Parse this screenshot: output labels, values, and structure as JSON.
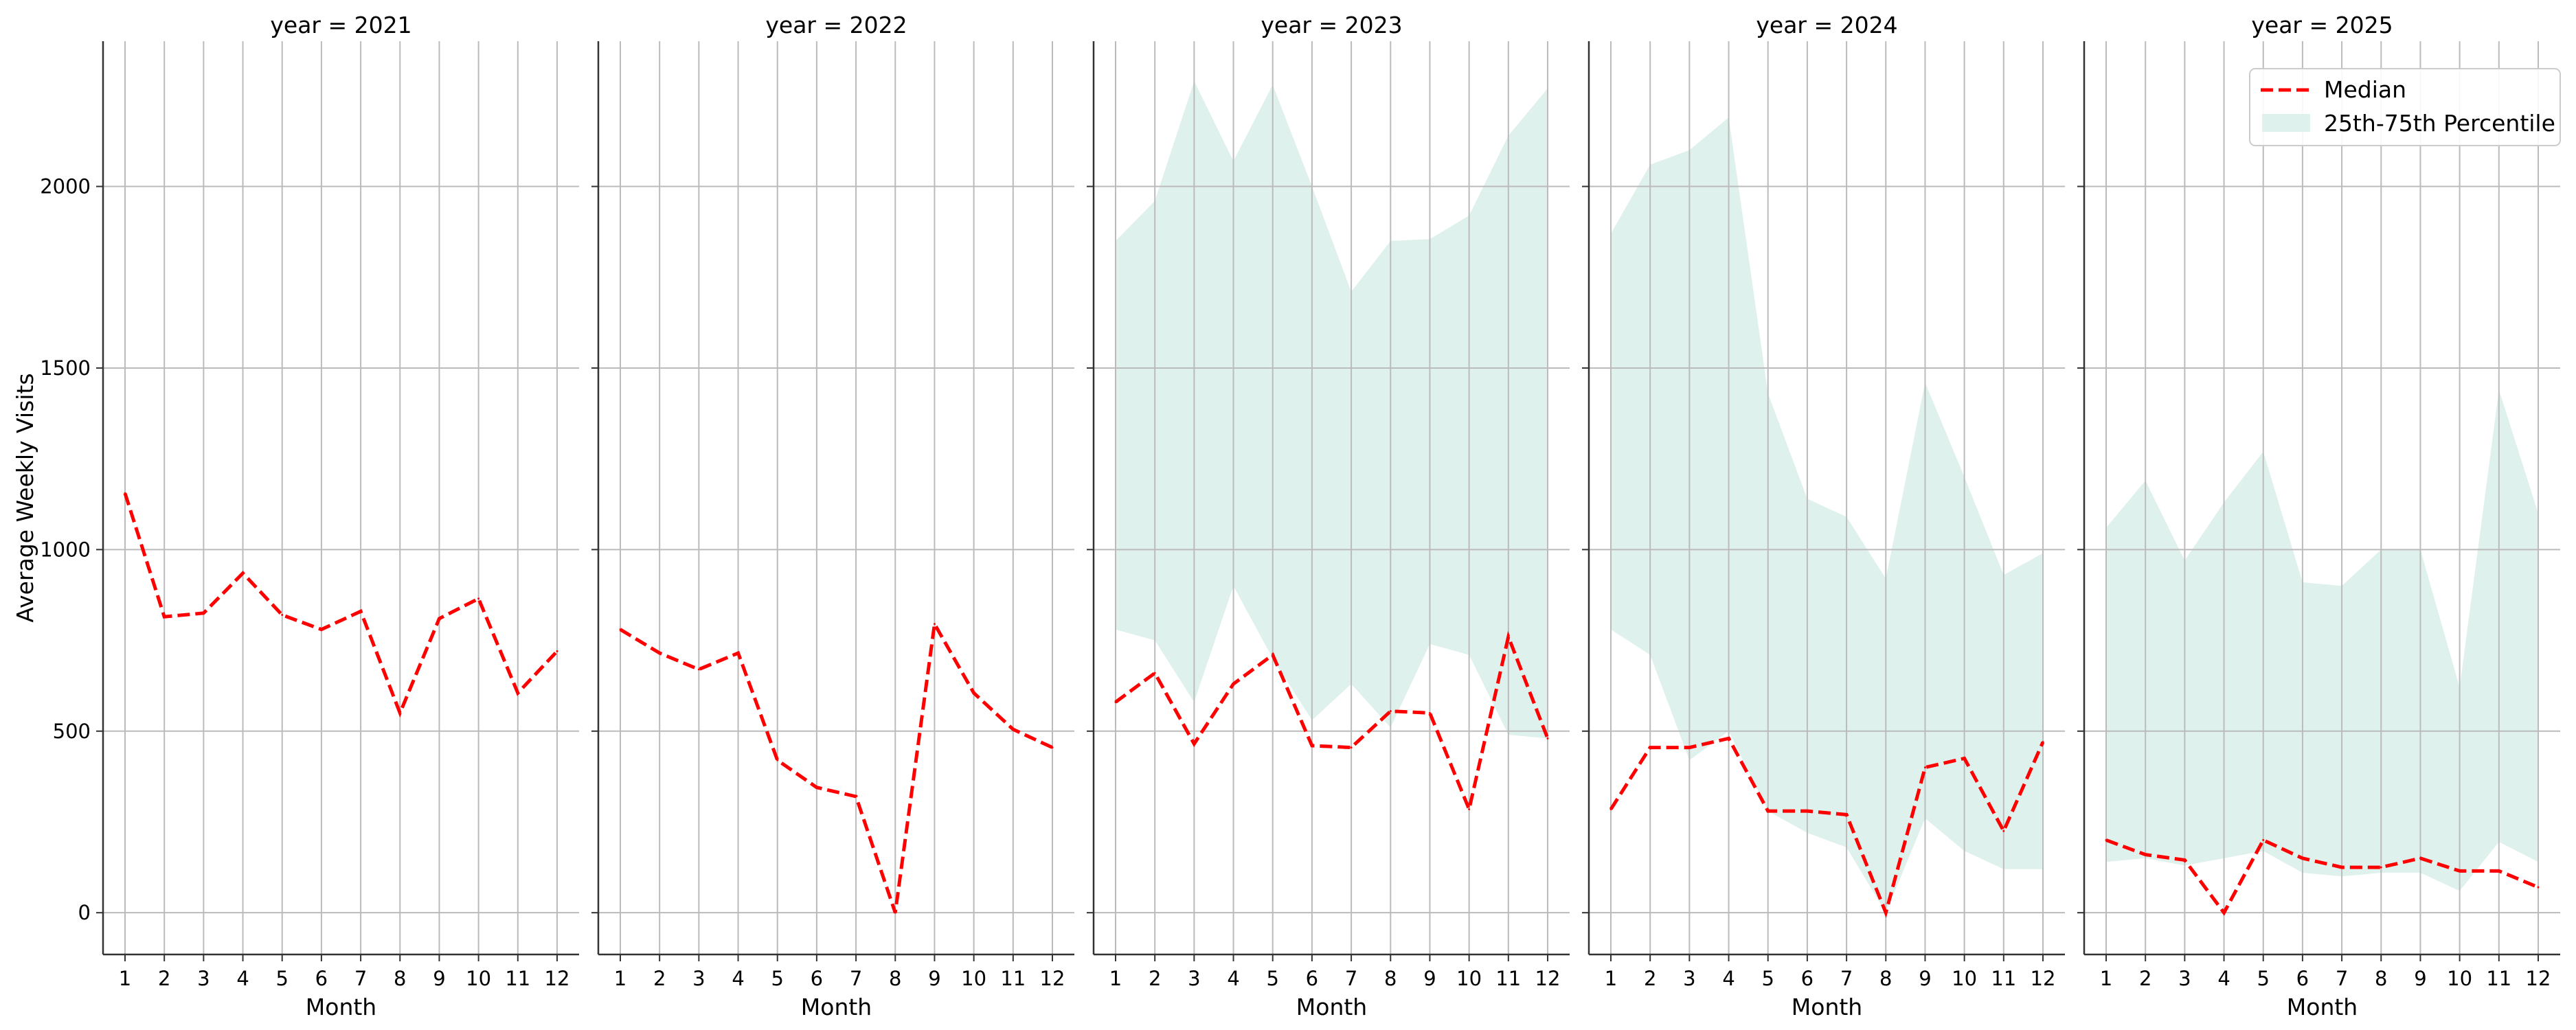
{
  "chart_data": {
    "type": "line",
    "facet_variable": "year",
    "ylabel": "Average Weekly Visits",
    "xlabel": "Month",
    "x": [
      1,
      2,
      3,
      4,
      5,
      6,
      7,
      8,
      9,
      10,
      11,
      12
    ],
    "ylim": [
      -115,
      2400
    ],
    "yticks": [
      0,
      500,
      1000,
      1500,
      2000
    ],
    "grid": true,
    "legend": {
      "placement": "top-right",
      "entries": [
        {
          "label": "Median",
          "style": "dashed-line",
          "color": "#ff0000"
        },
        {
          "label": "25th-75th Percentile",
          "style": "band",
          "color": "#dff1ec"
        }
      ]
    },
    "facets": [
      {
        "title": "year = 2021",
        "median": [
          1155,
          815,
          825,
          935,
          820,
          780,
          830,
          550,
          810,
          865,
          605,
          720
        ],
        "p25": null,
        "p75": null
      },
      {
        "title": "year = 2022",
        "median": [
          780,
          715,
          670,
          715,
          420,
          345,
          320,
          0,
          795,
          605,
          505,
          455
        ],
        "p25": null,
        "p75": null
      },
      {
        "title": "year = 2023",
        "median": [
          580,
          660,
          465,
          630,
          710,
          460,
          455,
          555,
          550,
          285,
          760,
          480
        ],
        "p25": [
          780,
          750,
          580,
          900,
          700,
          530,
          630,
          510,
          740,
          710,
          490,
          480
        ],
        "p75": [
          1850,
          1960,
          2290,
          2070,
          2280,
          2000,
          1710,
          1850,
          1855,
          1920,
          2140,
          2270
        ]
      },
      {
        "title": "year = 2024",
        "median": [
          285,
          455,
          455,
          480,
          280,
          280,
          270,
          0,
          400,
          425,
          225,
          470
        ],
        "p25": [
          780,
          710,
          420,
          500,
          280,
          220,
          180,
          0,
          260,
          170,
          120,
          120
        ],
        "p75": [
          1870,
          2060,
          2100,
          2190,
          1430,
          1140,
          1090,
          920,
          1460,
          1200,
          930,
          990
        ]
      },
      {
        "title": "year = 2025",
        "median": [
          200,
          160,
          145,
          0,
          200,
          150,
          125,
          125,
          150,
          115,
          115,
          70
        ],
        "p25": [
          140,
          150,
          130,
          150,
          170,
          110,
          100,
          110,
          110,
          60,
          195,
          140
        ],
        "p75": [
          1060,
          1190,
          970,
          1130,
          1270,
          910,
          900,
          1000,
          1000,
          620,
          1440,
          1100
        ]
      }
    ]
  },
  "colors": {
    "median_line": "#ff0000",
    "band_fill": "#dff1ec",
    "grid": "#bbbbbb",
    "axis": "#333333"
  }
}
